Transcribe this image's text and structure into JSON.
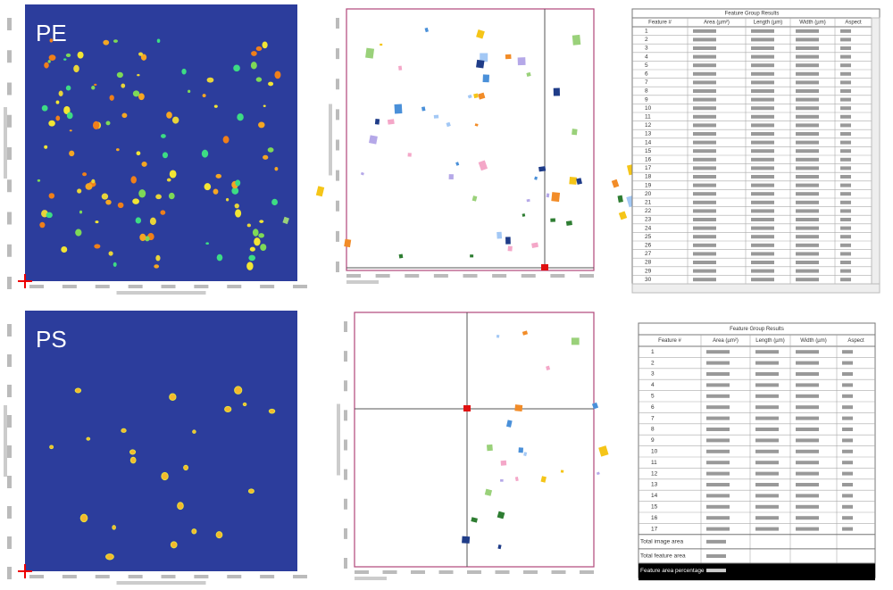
{
  "panels": [
    {
      "label": "PE"
    },
    {
      "label": "PS"
    }
  ],
  "tables": [
    {
      "title": "Feature Group Results",
      "headers": [
        "Feature #",
        "Area (µm²)",
        "Length (µm)",
        "Width (µm)",
        "Aspect"
      ],
      "rows": [
        1,
        2,
        3,
        4,
        5,
        6,
        7,
        8,
        9,
        10,
        11,
        12,
        13,
        14,
        15,
        16,
        17,
        18,
        19,
        20,
        21,
        22,
        23,
        24,
        25,
        26,
        27,
        28,
        29,
        30
      ]
    },
    {
      "title": "Feature Group Results",
      "headers": [
        "Feature #",
        "Area (µm²)",
        "Length (µm)",
        "Width (µm)",
        "Aspect"
      ],
      "rows": [
        1,
        2,
        3,
        4,
        5,
        6,
        7,
        8,
        9,
        10,
        11,
        12,
        13,
        14,
        15,
        16,
        17
      ],
      "footer": [
        "Total image area",
        "Total feature area",
        "Feature area percentage"
      ]
    }
  ]
}
